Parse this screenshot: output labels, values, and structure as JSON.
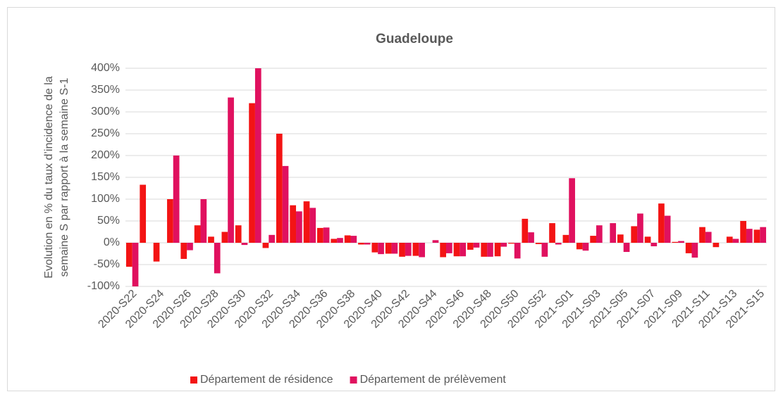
{
  "chart_data": {
    "type": "bar",
    "title": "Guadeloupe",
    "y_label": [
      "Evolution en % du taux d’incidence de la",
      "semaine S par rapport à la semaine S-1"
    ],
    "categories": [
      "2020-S22",
      null,
      "2020-S24",
      null,
      "2020-S26",
      null,
      "2020-S28",
      null,
      "2020-S30",
      null,
      "2020-S32",
      null,
      "2020-S34",
      null,
      "2020-S36",
      null,
      "2020-S38",
      null,
      "2020-S40",
      null,
      "2020-S42",
      null,
      "2020-S44",
      null,
      "2020-S46",
      null,
      "2020-S48",
      null,
      "2020-S50",
      null,
      "2020-S52",
      null,
      "2021-S01",
      null,
      "2021-S03",
      null,
      "2021-S05",
      null,
      "2021-S07",
      null,
      "2021-S09",
      null,
      "2021-S11",
      null,
      "2021-S13",
      null,
      "2021-S15"
    ],
    "series": [
      {
        "name": "Département de résidence",
        "color": "#f31414",
        "values": [
          -55,
          133,
          -43,
          100,
          -37,
          40,
          14,
          25,
          40,
          320,
          -12,
          250,
          86,
          95,
          34,
          9,
          17,
          -4,
          -22,
          -25,
          -32,
          -30,
          0,
          -33,
          -31,
          -16,
          -32,
          -31,
          -2,
          55,
          -3,
          45,
          18,
          -15,
          16,
          0,
          19,
          38,
          14,
          90,
          2,
          -24,
          36,
          -10,
          14,
          50,
          30
        ]
      },
      {
        "name": "Département de prélèvement",
        "color": "#e0115f",
        "values": [
          -100,
          0,
          0,
          200,
          -17,
          100,
          -70,
          333,
          -5,
          400,
          18,
          176,
          72,
          80,
          35,
          11,
          16,
          -4,
          -26,
          -25,
          -30,
          -33,
          6,
          -24,
          -31,
          -11,
          -32,
          -9,
          -36,
          24,
          -32,
          -4,
          148,
          -18,
          40,
          45,
          -21,
          67,
          -8,
          62,
          4,
          -34,
          25,
          0,
          9,
          32,
          36
        ]
      }
    ],
    "ylim": [
      -100,
      400
    ],
    "yticks": [
      {
        "value": -100,
        "label": "-100%"
      },
      {
        "value": -50,
        "label": "-50%"
      },
      {
        "value": 0,
        "label": "0%"
      },
      {
        "value": 50,
        "label": "50%"
      },
      {
        "value": 100,
        "label": "100%"
      },
      {
        "value": 150,
        "label": "150%"
      },
      {
        "value": 200,
        "label": "200%"
      },
      {
        "value": 250,
        "label": "250%"
      },
      {
        "value": 300,
        "label": "300%"
      },
      {
        "value": 350,
        "label": "350%"
      },
      {
        "value": 400,
        "label": "400%"
      }
    ],
    "grid": true,
    "legend": "bottom"
  }
}
